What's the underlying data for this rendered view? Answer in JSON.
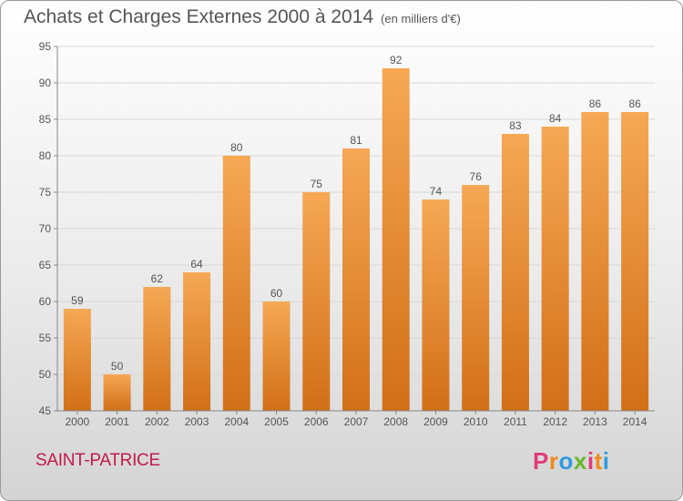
{
  "header": {
    "title": "Achats et Charges Externes 2000 à 2014",
    "unit": "(en milliers d'€)"
  },
  "footer": {
    "commune": "SAINT-PATRICE",
    "logo_letters": [
      "P",
      "r",
      "o",
      "x",
      "i",
      "t",
      "i"
    ],
    "logo_colors": [
      "#e23b7a",
      "#f08a1c",
      "#2e9be0",
      "#6ab82e",
      "#e23b7a",
      "#f08a1c",
      "#2e9be0"
    ]
  },
  "colors": {
    "bar_top": "#f6a855",
    "bar_bottom": "#d26f17",
    "grid": "#d8d8d8",
    "axis_text": "#555555"
  },
  "chart_data": {
    "type": "bar",
    "title": "Achats et Charges Externes 2000 à 2014",
    "subtitle": "(en milliers d'€)",
    "categories": [
      "2000",
      "2001",
      "2002",
      "2003",
      "2004",
      "2005",
      "2006",
      "2007",
      "2008",
      "2009",
      "2010",
      "2011",
      "2012",
      "2013",
      "2014"
    ],
    "values": [
      59,
      50,
      62,
      64,
      80,
      60,
      75,
      81,
      92,
      74,
      76,
      83,
      84,
      86,
      86
    ],
    "ylim": [
      45,
      95
    ],
    "yticks": [
      45,
      50,
      55,
      60,
      65,
      70,
      75,
      80,
      85,
      90,
      95
    ],
    "grid": true,
    "xlabel": "",
    "ylabel": ""
  }
}
